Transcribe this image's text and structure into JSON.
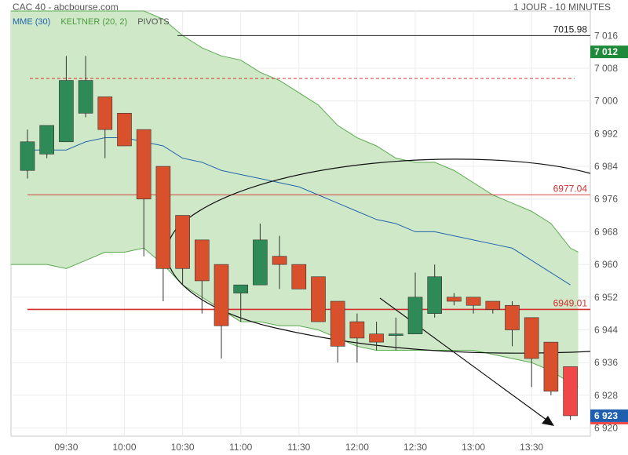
{
  "header": {
    "title": "CAC 40 - abcbourse.com",
    "period": "1 JOUR - 10 MINUTES"
  },
  "legend": {
    "mme": "MME (30)",
    "keltner": "KELTNER (20, 2)",
    "pivots": "PIVOTS"
  },
  "colors": {
    "up": "#2e8b57",
    "down": "#d9512c",
    "last": "#f04848",
    "band_fill": "#cfe8c8",
    "band_line": "#5aaa4e",
    "mme_line": "#2166ac",
    "pivot": "#d32f2f",
    "legend_mme": "#2166ac",
    "legend_keltner": "#4a9a3e",
    "legend_pivots": "#555555"
  },
  "chart_data": {
    "type": "candlestick",
    "x_tick_labels": [
      "09:30",
      "10:00",
      "10:30",
      "11:00",
      "11:30",
      "12:00",
      "12:30",
      "13:00",
      "13:30"
    ],
    "y_tick_labels": [
      "7 016",
      "7 008",
      "7 000",
      "6 992",
      "6 984",
      "6 976",
      "6 968",
      "6 960",
      "6 952",
      "6 944",
      "6 936",
      "6 928",
      "6 920"
    ],
    "ylim": [
      6918,
      7022
    ],
    "candles": [
      {
        "time": "09:10",
        "open": 6983,
        "high": 6993,
        "low": 6981,
        "close": 6990
      },
      {
        "time": "09:20",
        "open": 6987,
        "high": 6993,
        "low": 6986,
        "close": 6994
      },
      {
        "time": "09:30",
        "open": 6990,
        "high": 7011,
        "low": 6990,
        "close": 7005
      },
      {
        "time": "09:40",
        "open": 6997,
        "high": 7011,
        "low": 6996,
        "close": 7005
      },
      {
        "time": "09:50",
        "open": 7001,
        "high": 7001,
        "low": 6986,
        "close": 6993
      },
      {
        "time": "10:00",
        "open": 6997,
        "high": 6997,
        "low": 6989,
        "close": 6989
      },
      {
        "time": "10:10",
        "open": 6993,
        "high": 6993,
        "low": 6962,
        "close": 6976
      },
      {
        "time": "10:20",
        "open": 6984,
        "high": 6984,
        "low": 6951,
        "close": 6959
      },
      {
        "time": "10:30",
        "open": 6972,
        "high": 6972,
        "low": 6955,
        "close": 6959
      },
      {
        "time": "10:40",
        "open": 6966,
        "high": 6966,
        "low": 6948,
        "close": 6956
      },
      {
        "time": "10:50",
        "open": 6960,
        "high": 6960,
        "low": 6937,
        "close": 6945
      },
      {
        "time": "11:00",
        "open": 6953,
        "high": 6955,
        "low": 6946,
        "close": 6955
      },
      {
        "time": "11:10",
        "open": 6955,
        "high": 6970,
        "low": 6955,
        "close": 6966
      },
      {
        "time": "11:20",
        "open": 6962,
        "high": 6967,
        "low": 6954,
        "close": 6960
      },
      {
        "time": "11:30",
        "open": 6960,
        "high": 6960,
        "low": 6954,
        "close": 6954
      },
      {
        "time": "11:40",
        "open": 6957,
        "high": 6957,
        "low": 6946,
        "close": 6946
      },
      {
        "time": "11:50",
        "open": 6951,
        "high": 6951,
        "low": 6936,
        "close": 6940
      },
      {
        "time": "12:00",
        "open": 6946,
        "high": 6948,
        "low": 6936,
        "close": 6942
      },
      {
        "time": "12:10",
        "open": 6943,
        "high": 6946,
        "low": 6939,
        "close": 6941
      },
      {
        "time": "12:20",
        "open": 6943,
        "high": 6947,
        "low": 6939,
        "close": 6943
      },
      {
        "time": "12:30",
        "open": 6943,
        "high": 6958,
        "low": 6943,
        "close": 6952
      },
      {
        "time": "12:40",
        "open": 6948,
        "high": 6960,
        "low": 6947,
        "close": 6957
      },
      {
        "time": "12:50",
        "open": 6952,
        "high": 6953,
        "low": 6950,
        "close": 6951
      },
      {
        "time": "13:00",
        "open": 6952,
        "high": 6952,
        "low": 6948,
        "close": 6950
      },
      {
        "time": "13:10",
        "open": 6951,
        "high": 6951,
        "low": 6948,
        "close": 6949
      },
      {
        "time": "13:20",
        "open": 6950,
        "high": 6951,
        "low": 6940,
        "close": 6944
      },
      {
        "time": "13:30",
        "open": 6947,
        "high": 6947,
        "low": 6930,
        "close": 6937
      },
      {
        "time": "13:40",
        "open": 6941,
        "high": 6941,
        "low": 6928,
        "close": 6929
      },
      {
        "time": "13:50",
        "open": 6935,
        "high": 6935,
        "low": 6922,
        "close": 6923
      }
    ],
    "keltner_upper": [
      7022,
      7022,
      7022,
      7022,
      7022,
      7022,
      7022,
      7020,
      7016,
      7013,
      7011,
      7010,
      7007,
      7005,
      7002,
      6999,
      6994,
      6991,
      6989,
      6986,
      6985,
      6985,
      6983,
      6980,
      6977,
      6975,
      6973,
      6970,
      6964
    ],
    "keltner_lower": [
      6960,
      6960,
      6959,
      6961,
      6963,
      6963,
      6964,
      6960,
      6955,
      6952,
      6949,
      6946,
      6946,
      6945,
      6945,
      6944,
      6942,
      6940,
      6939,
      6939,
      6939,
      6939,
      6939,
      6939,
      6938,
      6937,
      6936,
      6934,
      6931
    ],
    "mme": [
      6988,
      6988,
      6988,
      6990,
      6991,
      6991,
      6990,
      6989,
      6986,
      6985,
      6983,
      6982,
      6981,
      6980,
      6979,
      6977,
      6975,
      6973,
      6971,
      6970,
      6968,
      6968,
      6967,
      6966,
      6965,
      6964,
      6961,
      6958,
      6955
    ],
    "pivots": [
      {
        "value": 7015.98,
        "label": "7015.98",
        "style": "solid-black"
      },
      {
        "value": 7005.5,
        "label": "",
        "style": "dashed-red"
      },
      {
        "value": 6977.04,
        "label": "6977.04",
        "style": "thin-red"
      },
      {
        "value": 6949.01,
        "label": "6949.01",
        "style": "thick-red"
      }
    ],
    "badges": [
      {
        "value": 7012,
        "label": "7 012",
        "color": "#1f8a3a"
      },
      {
        "value": 6923,
        "label": "6 923",
        "color": "#1f5fb0"
      }
    ]
  }
}
